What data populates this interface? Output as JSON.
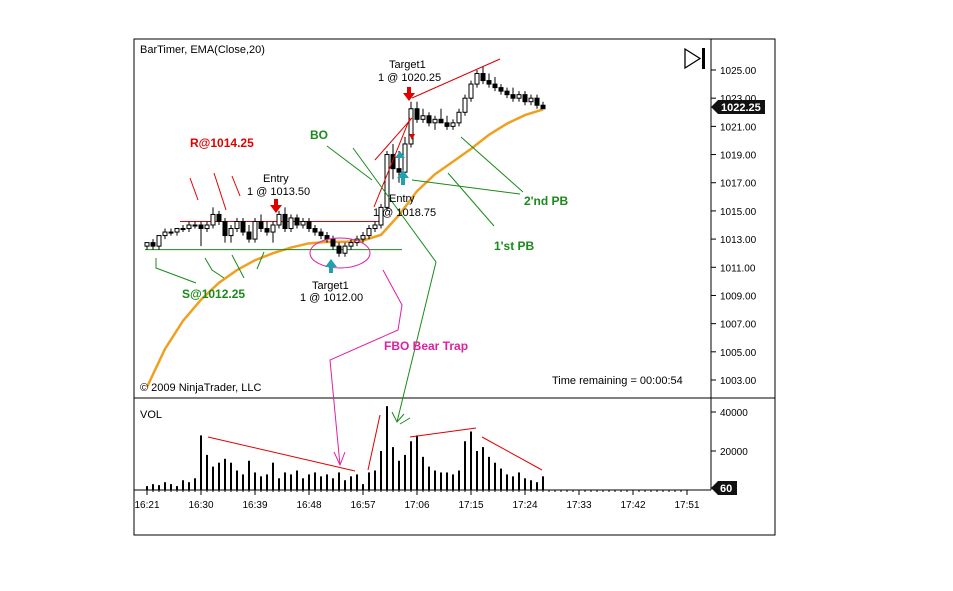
{
  "chart_data": {
    "type": "candlestick",
    "title": "BarTimer, EMA(Close,20)",
    "copyright": "© 2009 NinjaTrader, LLC",
    "time_remaining": "Time remaining = 00:00:54",
    "last_price_label": "1022.25",
    "price_axis": {
      "ylim": [
        1002,
        1026.5
      ],
      "ticks": [
        "1025.00",
        "1023.00",
        "1021.00",
        "1019.00",
        "1017.00",
        "1015.00",
        "1013.00",
        "1011.00",
        "1009.00",
        "1007.00",
        "1005.00",
        "1003.00"
      ]
    },
    "time_axis": {
      "ticks": [
        "16:21",
        "16:30",
        "16:39",
        "16:48",
        "16:57",
        "17:06",
        "17:15",
        "17:24",
        "17:33",
        "17:42",
        "17:51"
      ],
      "interval_minutes": 1
    },
    "volume_panel": {
      "label": "VOL",
      "ticks": [
        "40000",
        "20000"
      ],
      "ylim": [
        0,
        48000
      ],
      "last_label": "60"
    },
    "bars": [
      {
        "t": "16:21",
        "o": 1012.5,
        "h": 1012.75,
        "l": 1012.25,
        "c": 1012.75,
        "v": 2000
      },
      {
        "t": "16:22",
        "o": 1012.75,
        "h": 1013.0,
        "l": 1012.25,
        "c": 1012.5,
        "v": 3000
      },
      {
        "t": "16:23",
        "o": 1012.5,
        "h": 1013.25,
        "l": 1012.25,
        "c": 1013.25,
        "v": 2500
      },
      {
        "t": "16:24",
        "o": 1013.25,
        "h": 1013.75,
        "l": 1013.0,
        "c": 1013.5,
        "v": 4000
      },
      {
        "t": "16:25",
        "o": 1013.5,
        "h": 1013.75,
        "l": 1013.25,
        "c": 1013.5,
        "v": 3000
      },
      {
        "t": "16:26",
        "o": 1013.5,
        "h": 1013.75,
        "l": 1013.25,
        "c": 1013.75,
        "v": 2000
      },
      {
        "t": "16:27",
        "o": 1013.75,
        "h": 1014.0,
        "l": 1013.5,
        "c": 1013.75,
        "v": 5000
      },
      {
        "t": "16:28",
        "o": 1013.75,
        "h": 1014.25,
        "l": 1013.5,
        "c": 1014.0,
        "v": 4000
      },
      {
        "t": "16:29",
        "o": 1014.0,
        "h": 1014.25,
        "l": 1013.75,
        "c": 1014.0,
        "v": 6000
      },
      {
        "t": "16:30",
        "o": 1014.0,
        "h": 1014.25,
        "l": 1012.5,
        "c": 1013.75,
        "v": 28000
      },
      {
        "t": "16:31",
        "o": 1013.75,
        "h": 1014.25,
        "l": 1013.5,
        "c": 1014.0,
        "v": 18000
      },
      {
        "t": "16:32",
        "o": 1014.0,
        "h": 1015.25,
        "l": 1013.75,
        "c": 1014.75,
        "v": 12000
      },
      {
        "t": "16:33",
        "o": 1014.75,
        "h": 1015.0,
        "l": 1014.0,
        "c": 1014.25,
        "v": 14000
      },
      {
        "t": "16:34",
        "o": 1014.25,
        "h": 1014.5,
        "l": 1012.75,
        "c": 1013.25,
        "v": 16000
      },
      {
        "t": "16:35",
        "o": 1013.25,
        "h": 1014.0,
        "l": 1012.75,
        "c": 1013.75,
        "v": 14000
      },
      {
        "t": "16:36",
        "o": 1013.75,
        "h": 1014.5,
        "l": 1013.5,
        "c": 1014.25,
        "v": 10000
      },
      {
        "t": "16:37",
        "o": 1014.25,
        "h": 1014.5,
        "l": 1013.25,
        "c": 1013.5,
        "v": 8000
      },
      {
        "t": "16:38",
        "o": 1013.5,
        "h": 1014.0,
        "l": 1012.75,
        "c": 1013.0,
        "v": 15000
      },
      {
        "t": "16:39",
        "o": 1013.0,
        "h": 1014.5,
        "l": 1012.75,
        "c": 1014.25,
        "v": 9000
      },
      {
        "t": "16:40",
        "o": 1014.25,
        "h": 1014.75,
        "l": 1013.5,
        "c": 1013.75,
        "v": 7000
      },
      {
        "t": "16:41",
        "o": 1013.75,
        "h": 1014.25,
        "l": 1013.25,
        "c": 1013.5,
        "v": 8000
      },
      {
        "t": "16:42",
        "o": 1013.5,
        "h": 1014.25,
        "l": 1012.75,
        "c": 1014.0,
        "v": 14000
      },
      {
        "t": "16:43",
        "o": 1014.0,
        "h": 1015.0,
        "l": 1013.75,
        "c": 1014.75,
        "v": 6000
      },
      {
        "t": "16:44",
        "o": 1014.75,
        "h": 1015.25,
        "l": 1013.5,
        "c": 1013.75,
        "v": 9000
      },
      {
        "t": "16:45",
        "o": 1013.75,
        "h": 1014.75,
        "l": 1013.5,
        "c": 1014.5,
        "v": 8000
      },
      {
        "t": "16:46",
        "o": 1014.5,
        "h": 1014.75,
        "l": 1013.75,
        "c": 1014.0,
        "v": 10000
      },
      {
        "t": "16:47",
        "o": 1014.0,
        "h": 1014.5,
        "l": 1013.75,
        "c": 1014.25,
        "v": 6000
      },
      {
        "t": "16:48",
        "o": 1014.25,
        "h": 1014.5,
        "l": 1013.5,
        "c": 1013.75,
        "v": 8000
      },
      {
        "t": "16:49",
        "o": 1013.75,
        "h": 1014.0,
        "l": 1013.25,
        "c": 1013.5,
        "v": 9000
      },
      {
        "t": "16:50",
        "o": 1013.5,
        "h": 1013.75,
        "l": 1013.0,
        "c": 1013.25,
        "v": 7000
      },
      {
        "t": "16:51",
        "o": 1013.25,
        "h": 1013.5,
        "l": 1012.75,
        "c": 1013.0,
        "v": 8000
      },
      {
        "t": "16:52",
        "o": 1013.0,
        "h": 1013.25,
        "l": 1012.25,
        "c": 1012.5,
        "v": 6000
      },
      {
        "t": "16:53",
        "o": 1012.5,
        "h": 1012.75,
        "l": 1011.75,
        "c": 1012.0,
        "v": 9000
      },
      {
        "t": "16:54",
        "o": 1012.0,
        "h": 1012.75,
        "l": 1011.75,
        "c": 1012.5,
        "v": 5000
      },
      {
        "t": "16:55",
        "o": 1012.5,
        "h": 1013.0,
        "l": 1012.25,
        "c": 1012.75,
        "v": 7000
      },
      {
        "t": "16:56",
        "o": 1012.75,
        "h": 1013.25,
        "l": 1012.5,
        "c": 1013.0,
        "v": 8000
      },
      {
        "t": "16:57",
        "o": 1013.0,
        "h": 1013.5,
        "l": 1012.75,
        "c": 1013.25,
        "v": 3000
      },
      {
        "t": "16:58",
        "o": 1013.25,
        "h": 1014.0,
        "l": 1013.0,
        "c": 1013.75,
        "v": 9000
      },
      {
        "t": "16:59",
        "o": 1013.75,
        "h": 1014.25,
        "l": 1013.5,
        "c": 1014.0,
        "v": 10000
      },
      {
        "t": "17:00",
        "o": 1014.0,
        "h": 1015.5,
        "l": 1013.75,
        "c": 1015.25,
        "v": 20000
      },
      {
        "t": "17:01",
        "o": 1015.25,
        "h": 1019.25,
        "l": 1015.0,
        "c": 1019.0,
        "v": 43000
      },
      {
        "t": "17:02",
        "o": 1019.0,
        "h": 1019.75,
        "l": 1017.25,
        "c": 1018.0,
        "v": 22000
      },
      {
        "t": "17:03",
        "o": 1018.0,
        "h": 1019.25,
        "l": 1017.0,
        "c": 1017.75,
        "v": 15000
      },
      {
        "t": "17:04",
        "o": 1017.75,
        "h": 1020.25,
        "l": 1017.5,
        "c": 1019.75,
        "v": 18000
      },
      {
        "t": "17:05",
        "o": 1019.75,
        "h": 1022.75,
        "l": 1019.5,
        "c": 1022.25,
        "v": 25000
      },
      {
        "t": "17:06",
        "o": 1022.25,
        "h": 1022.75,
        "l": 1021.25,
        "c": 1021.5,
        "v": 28000
      },
      {
        "t": "17:07",
        "o": 1021.5,
        "h": 1022.25,
        "l": 1021.25,
        "c": 1021.75,
        "v": 17000
      },
      {
        "t": "17:08",
        "o": 1021.75,
        "h": 1022.0,
        "l": 1021.0,
        "c": 1021.25,
        "v": 12000
      },
      {
        "t": "17:09",
        "o": 1021.25,
        "h": 1021.75,
        "l": 1020.75,
        "c": 1021.5,
        "v": 10000
      },
      {
        "t": "17:10",
        "o": 1021.5,
        "h": 1022.25,
        "l": 1021.25,
        "c": 1021.25,
        "v": 9000
      },
      {
        "t": "17:11",
        "o": 1021.25,
        "h": 1021.75,
        "l": 1020.75,
        "c": 1021.0,
        "v": 9000
      },
      {
        "t": "17:12",
        "o": 1021.0,
        "h": 1021.5,
        "l": 1020.75,
        "c": 1021.25,
        "v": 8000
      },
      {
        "t": "17:13",
        "o": 1021.25,
        "h": 1022.25,
        "l": 1021.0,
        "c": 1022.0,
        "v": 10000
      },
      {
        "t": "17:14",
        "o": 1022.0,
        "h": 1023.25,
        "l": 1021.75,
        "c": 1023.0,
        "v": 25000
      },
      {
        "t": "17:15",
        "o": 1023.0,
        "h": 1024.25,
        "l": 1022.75,
        "c": 1024.0,
        "v": 30000
      },
      {
        "t": "17:16",
        "o": 1024.0,
        "h": 1025.0,
        "l": 1023.75,
        "c": 1024.75,
        "v": 20000
      },
      {
        "t": "17:17",
        "o": 1024.75,
        "h": 1025.25,
        "l": 1024.0,
        "c": 1024.25,
        "v": 22000
      },
      {
        "t": "17:18",
        "o": 1024.25,
        "h": 1024.75,
        "l": 1023.75,
        "c": 1024.0,
        "v": 17000
      },
      {
        "t": "17:19",
        "o": 1024.0,
        "h": 1024.5,
        "l": 1023.5,
        "c": 1023.75,
        "v": 14000
      },
      {
        "t": "17:20",
        "o": 1023.75,
        "h": 1024.0,
        "l": 1023.25,
        "c": 1023.5,
        "v": 11000
      },
      {
        "t": "17:21",
        "o": 1023.5,
        "h": 1023.75,
        "l": 1023.0,
        "c": 1023.25,
        "v": 8000
      },
      {
        "t": "17:22",
        "o": 1023.25,
        "h": 1023.75,
        "l": 1022.75,
        "c": 1023.0,
        "v": 7000
      },
      {
        "t": "17:23",
        "o": 1023.0,
        "h": 1023.5,
        "l": 1022.75,
        "c": 1023.25,
        "v": 9000
      },
      {
        "t": "17:24",
        "o": 1023.25,
        "h": 1023.5,
        "l": 1022.5,
        "c": 1022.75,
        "v": 6000
      },
      {
        "t": "17:25",
        "o": 1022.75,
        "h": 1023.25,
        "l": 1022.5,
        "c": 1023.0,
        "v": 5000
      },
      {
        "t": "17:26",
        "o": 1023.0,
        "h": 1023.25,
        "l": 1022.25,
        "c": 1022.5,
        "v": 4000
      },
      {
        "t": "17:27",
        "o": 1022.5,
        "h": 1022.75,
        "l": 1022.25,
        "c": 1022.25,
        "v": 7000
      }
    ],
    "ema": [
      {
        "t": "16:21",
        "v": 1002.5
      },
      {
        "t": "16:24",
        "v": 1005.2
      },
      {
        "t": "16:27",
        "v": 1007.2
      },
      {
        "t": "16:30",
        "v": 1008.7
      },
      {
        "t": "16:33",
        "v": 1009.9
      },
      {
        "t": "16:36",
        "v": 1010.8
      },
      {
        "t": "16:39",
        "v": 1011.5
      },
      {
        "t": "16:42",
        "v": 1012.0
      },
      {
        "t": "16:45",
        "v": 1012.4
      },
      {
        "t": "16:48",
        "v": 1012.7
      },
      {
        "t": "16:51",
        "v": 1012.8
      },
      {
        "t": "16:54",
        "v": 1012.8
      },
      {
        "t": "16:57",
        "v": 1012.9
      },
      {
        "t": "17:00",
        "v": 1013.3
      },
      {
        "t": "17:03",
        "v": 1014.7
      },
      {
        "t": "17:06",
        "v": 1016.4
      },
      {
        "t": "17:09",
        "v": 1017.6
      },
      {
        "t": "17:12",
        "v": 1018.5
      },
      {
        "t": "17:15",
        "v": 1019.4
      },
      {
        "t": "17:18",
        "v": 1020.4
      },
      {
        "t": "17:21",
        "v": 1021.2
      },
      {
        "t": "17:24",
        "v": 1021.8
      },
      {
        "t": "17:27",
        "v": 1022.2
      }
    ],
    "annotations": {
      "resistance": "R@1014.25",
      "support": "S@1012.25",
      "entry_short_title": "Entry",
      "entry_short_detail": "1 @ 1013.50",
      "target_long_title": "Target1",
      "target_long_detail": "1 @ 1012.00",
      "entry_long_title": "Entry",
      "entry_long_detail": "1 @ 1018.75",
      "target_up_title": "Target1",
      "target_up_detail": "1 @ 1020.25",
      "bo": "BO",
      "first_pb": "1'st PB",
      "second_pb": "2'nd PB",
      "fbo": "FBO Bear Trap"
    },
    "levels": {
      "resistance": 1014.25,
      "support": 1012.25
    },
    "colors": {
      "ema": "#f0a020",
      "red": "#e00000",
      "green": "#1a8a1a",
      "magenta": "#e020a0",
      "cyan": "#20a0b0"
    }
  }
}
